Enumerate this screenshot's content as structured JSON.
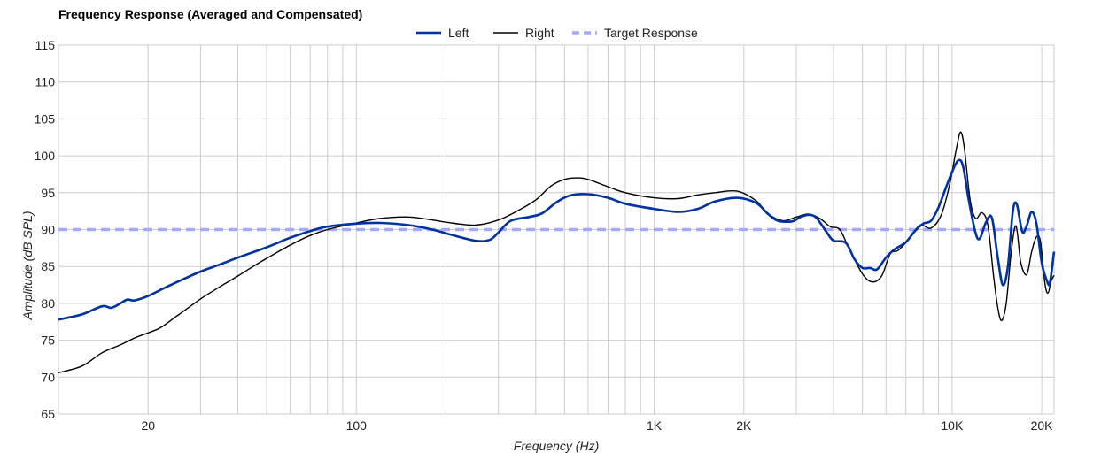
{
  "chart_data": {
    "type": "line",
    "title": "Frequency Response (Averaged and Compensated)",
    "xlabel": "Frequency (Hz)",
    "ylabel": "Amplitude (dB SPL)",
    "x_scale": "log",
    "xlim": [
      10,
      22000
    ],
    "ylim": [
      65,
      115
    ],
    "y_ticks": [
      65,
      70,
      75,
      80,
      85,
      90,
      95,
      100,
      105,
      110,
      115
    ],
    "x_ticks": [
      {
        "value": 20,
        "label": "20"
      },
      {
        "value": 100,
        "label": "100"
      },
      {
        "value": 1000,
        "label": "1K"
      },
      {
        "value": 2000,
        "label": "2K"
      },
      {
        "value": 10000,
        "label": "10K"
      },
      {
        "value": 20000,
        "label": "20K"
      }
    ],
    "grid": true,
    "legend_position": "top",
    "series": [
      {
        "name": "Left",
        "color": "#0033a0",
        "style": "solid",
        "points": [
          [
            10,
            77.8
          ],
          [
            12,
            78.5
          ],
          [
            14,
            79.6
          ],
          [
            15,
            79.4
          ],
          [
            16,
            79.9
          ],
          [
            17,
            80.5
          ],
          [
            18,
            80.4
          ],
          [
            20,
            81
          ],
          [
            23,
            82.2
          ],
          [
            27,
            83.5
          ],
          [
            30,
            84.3
          ],
          [
            35,
            85.3
          ],
          [
            40,
            86.2
          ],
          [
            50,
            87.6
          ],
          [
            60,
            88.9
          ],
          [
            70,
            89.8
          ],
          [
            80,
            90.4
          ],
          [
            100,
            90.8
          ],
          [
            120,
            90.9
          ],
          [
            150,
            90.6
          ],
          [
            180,
            90
          ],
          [
            200,
            89.5
          ],
          [
            250,
            88.5
          ],
          [
            280,
            88.6
          ],
          [
            300,
            89.6
          ],
          [
            330,
            91.2
          ],
          [
            380,
            91.7
          ],
          [
            420,
            92.2
          ],
          [
            470,
            93.7
          ],
          [
            520,
            94.6
          ],
          [
            600,
            94.8
          ],
          [
            700,
            94.3
          ],
          [
            800,
            93.5
          ],
          [
            1000,
            92.8
          ],
          [
            1200,
            92.4
          ],
          [
            1400,
            92.8
          ],
          [
            1600,
            93.8
          ],
          [
            1900,
            94.3
          ],
          [
            2200,
            93.6
          ],
          [
            2400,
            92.2
          ],
          [
            2600,
            91.2
          ],
          [
            2900,
            91.1
          ],
          [
            3100,
            91.7
          ],
          [
            3300,
            92
          ],
          [
            3500,
            91.6
          ],
          [
            3800,
            89.6
          ],
          [
            4000,
            88.5
          ],
          [
            4400,
            88.2
          ],
          [
            4700,
            86
          ],
          [
            5000,
            84.8
          ],
          [
            5300,
            84.8
          ],
          [
            5600,
            84.6
          ],
          [
            6000,
            86.2
          ],
          [
            6400,
            87.3
          ],
          [
            7000,
            88.3
          ],
          [
            7500,
            89.8
          ],
          [
            8000,
            90.8
          ],
          [
            8500,
            91.2
          ],
          [
            9000,
            93
          ],
          [
            9500,
            95.5
          ],
          [
            10000,
            97.8
          ],
          [
            10500,
            99.4
          ],
          [
            10900,
            98.5
          ],
          [
            11400,
            93.8
          ],
          [
            12000,
            89.5
          ],
          [
            12400,
            88.8
          ],
          [
            13000,
            91
          ],
          [
            13600,
            91.6
          ],
          [
            14200,
            86.5
          ],
          [
            14800,
            82.5
          ],
          [
            15400,
            85
          ],
          [
            16000,
            92.5
          ],
          [
            16500,
            93.4
          ],
          [
            17200,
            89.7
          ],
          [
            17800,
            90.5
          ],
          [
            18500,
            92.4
          ],
          [
            19200,
            90.8
          ],
          [
            20000,
            85.5
          ],
          [
            20800,
            83.1
          ],
          [
            21300,
            82.8
          ],
          [
            22000,
            87
          ]
        ]
      },
      {
        "name": "Right",
        "color": "#000000",
        "style": "solid",
        "points": [
          [
            10,
            70.6
          ],
          [
            12,
            71.5
          ],
          [
            14,
            73.3
          ],
          [
            16,
            74.3
          ],
          [
            18,
            75.3
          ],
          [
            20,
            76
          ],
          [
            22,
            76.7
          ],
          [
            25,
            78.3
          ],
          [
            30,
            80.6
          ],
          [
            35,
            82.3
          ],
          [
            40,
            83.7
          ],
          [
            45,
            85
          ],
          [
            50,
            86.1
          ],
          [
            60,
            87.9
          ],
          [
            70,
            89.2
          ],
          [
            80,
            90
          ],
          [
            100,
            90.9
          ],
          [
            120,
            91.5
          ],
          [
            150,
            91.7
          ],
          [
            180,
            91.3
          ],
          [
            200,
            91
          ],
          [
            250,
            90.6
          ],
          [
            300,
            91.3
          ],
          [
            350,
            92.6
          ],
          [
            400,
            94
          ],
          [
            450,
            95.9
          ],
          [
            500,
            96.8
          ],
          [
            550,
            97
          ],
          [
            600,
            96.8
          ],
          [
            700,
            95.8
          ],
          [
            800,
            95
          ],
          [
            1000,
            94.3
          ],
          [
            1200,
            94.2
          ],
          [
            1400,
            94.7
          ],
          [
            1600,
            95
          ],
          [
            1900,
            95.2
          ],
          [
            2200,
            93.9
          ],
          [
            2400,
            92.2
          ],
          [
            2700,
            91.2
          ],
          [
            3000,
            91.7
          ],
          [
            3300,
            92.1
          ],
          [
            3600,
            91.5
          ],
          [
            3900,
            90.4
          ],
          [
            4200,
            90
          ],
          [
            4500,
            87.5
          ],
          [
            5000,
            84
          ],
          [
            5400,
            82.9
          ],
          [
            5800,
            83.7
          ],
          [
            6200,
            86.7
          ],
          [
            6600,
            87.2
          ],
          [
            7200,
            88.8
          ],
          [
            7800,
            90.6
          ],
          [
            8500,
            90.2
          ],
          [
            9200,
            92
          ],
          [
            9800,
            96
          ],
          [
            10400,
            101.5
          ],
          [
            10700,
            103.2
          ],
          [
            11000,
            101
          ],
          [
            11500,
            94
          ],
          [
            12000,
            91.5
          ],
          [
            12600,
            92.3
          ],
          [
            13200,
            90.5
          ],
          [
            13800,
            83.5
          ],
          [
            14300,
            79
          ],
          [
            14700,
            77.7
          ],
          [
            15200,
            80
          ],
          [
            15800,
            87
          ],
          [
            16400,
            90.5
          ],
          [
            17000,
            85.6
          ],
          [
            17800,
            83.9
          ],
          [
            18500,
            87
          ],
          [
            19200,
            89
          ],
          [
            19800,
            88.4
          ],
          [
            20500,
            82.7
          ],
          [
            21000,
            81.4
          ],
          [
            21500,
            83
          ],
          [
            22000,
            83.8
          ]
        ]
      },
      {
        "name": "Target Response",
        "color": "#a4a8ff",
        "style": "dashed",
        "points": [
          [
            10,
            90
          ],
          [
            22000,
            90
          ]
        ]
      }
    ]
  }
}
